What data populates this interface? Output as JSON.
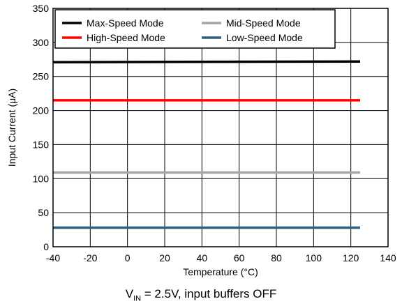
{
  "chart_data": {
    "type": "line",
    "xlabel": "Temperature (°C)",
    "ylabel": "Input Current (μA)",
    "xlim": [
      -40,
      140
    ],
    "ylim": [
      0,
      350
    ],
    "xticks": [
      -40,
      -20,
      0,
      20,
      40,
      60,
      80,
      100,
      120,
      140
    ],
    "yticks": [
      0,
      50,
      100,
      150,
      200,
      250,
      300,
      350
    ],
    "grid": true,
    "legend_position": "top-left",
    "series": [
      {
        "name": "Max-Speed Mode",
        "color": "#000000",
        "x": [
          -40,
          125
        ],
        "y": [
          271,
          272
        ]
      },
      {
        "name": "High-Speed Mode",
        "color": "#ff0000",
        "x": [
          -40,
          125
        ],
        "y": [
          215,
          215
        ]
      },
      {
        "name": "Mid-Speed Mode",
        "color": "#a6a6a6",
        "x": [
          -40,
          125
        ],
        "y": [
          109,
          109
        ]
      },
      {
        "name": "Low-Speed Mode",
        "color": "#2f5f80",
        "x": [
          -40,
          125
        ],
        "y": [
          28,
          28
        ]
      }
    ]
  },
  "caption": {
    "v_symbol": "V",
    "v_subscript": "IN",
    "text": " = 2.5V, input buffers OFF"
  }
}
